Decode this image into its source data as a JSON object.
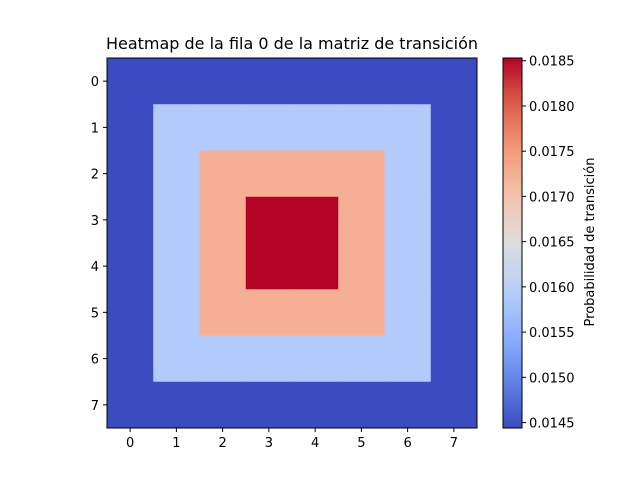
{
  "chart_data": {
    "type": "heatmap",
    "title": "Heatmap de la fila 0 de la matriz de transición",
    "x_ticks": [
      "0",
      "1",
      "2",
      "3",
      "4",
      "5",
      "6",
      "7"
    ],
    "y_ticks": [
      "0",
      "1",
      "2",
      "3",
      "4",
      "5",
      "6",
      "7"
    ],
    "values": [
      [
        0.01444,
        0.01444,
        0.01444,
        0.01444,
        0.01444,
        0.01444,
        0.01444,
        0.01444
      ],
      [
        0.01444,
        0.0159,
        0.0159,
        0.0159,
        0.0159,
        0.0159,
        0.0159,
        0.01444
      ],
      [
        0.01444,
        0.0159,
        0.01725,
        0.01725,
        0.01725,
        0.01725,
        0.0159,
        0.01444
      ],
      [
        0.01444,
        0.0159,
        0.01725,
        0.01853,
        0.01853,
        0.01725,
        0.0159,
        0.01444
      ],
      [
        0.01444,
        0.0159,
        0.01725,
        0.01853,
        0.01853,
        0.01725,
        0.0159,
        0.01444
      ],
      [
        0.01444,
        0.0159,
        0.01725,
        0.01725,
        0.01725,
        0.01725,
        0.0159,
        0.01444
      ],
      [
        0.01444,
        0.0159,
        0.0159,
        0.0159,
        0.0159,
        0.0159,
        0.0159,
        0.01444
      ],
      [
        0.01444,
        0.01444,
        0.01444,
        0.01444,
        0.01444,
        0.01444,
        0.01444,
        0.01444
      ]
    ],
    "colormap": "coolwarm",
    "colorbar": {
      "label": "Probabilidad de transición",
      "range": [
        0.01444,
        0.01853
      ],
      "ticks": [
        0.0145,
        0.015,
        0.0155,
        0.016,
        0.0165,
        0.017,
        0.0175,
        0.018,
        0.0185
      ],
      "tick_labels": [
        "0.0145",
        "0.0150",
        "0.0155",
        "0.0160",
        "0.0165",
        "0.0170",
        "0.0175",
        "0.0180",
        "0.0185"
      ]
    },
    "grid": false
  }
}
